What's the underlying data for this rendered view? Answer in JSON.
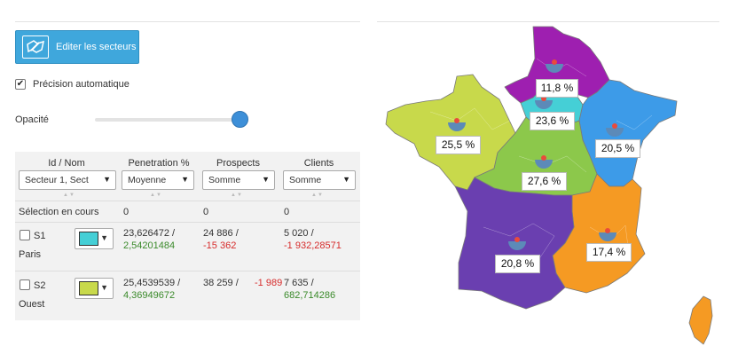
{
  "toolbar": {
    "edit_label": "Editer les secteurs"
  },
  "auto_precision": {
    "label": "Précision automatique",
    "checked": true
  },
  "opacity": {
    "label": "Opacité",
    "value": 0.95
  },
  "table": {
    "headers": {
      "id": "Id / Nom",
      "penetration": "Penetration %",
      "prospects": "Prospects",
      "clients": "Clients"
    },
    "selects": {
      "id": "Secteur 1, Sect",
      "penetration": "Moyenne",
      "prospects": "Somme",
      "clients": "Somme"
    },
    "selection": {
      "label": "Sélection en cours",
      "penetration": "0",
      "prospects": "0",
      "clients": "0"
    },
    "rows": [
      {
        "id": "S1",
        "name": "Paris",
        "color": "#45cfd6",
        "penetration_1": "23,626472 /",
        "penetration_2": "2,54201484",
        "prospects_1": "24 886 /",
        "prospects_2": "-15 362",
        "clients_1": "5 020 /",
        "clients_2": "-1 932,28571"
      },
      {
        "id": "S2",
        "name": "Ouest",
        "color": "#c8d94b",
        "penetration_1": "25,4539539 /",
        "penetration_2": "4,36949672",
        "prospects_1": "38 259 /",
        "prospects_2": "-1 989",
        "clients_1": "7 635 /",
        "clients_2": "682,714286"
      }
    ]
  },
  "map": {
    "regions": [
      {
        "id": "nord",
        "color": "#9e1fb0",
        "label": "11,8 %"
      },
      {
        "id": "paris",
        "color": "#45cfd6",
        "label": "23,6 %"
      },
      {
        "id": "ouest",
        "color": "#c8d94b",
        "label": "25,5 %"
      },
      {
        "id": "est",
        "color": "#3d9be8",
        "label": "20,5 %"
      },
      {
        "id": "centre",
        "color": "#8cc84b",
        "label": "27,6 %"
      },
      {
        "id": "sud-est",
        "color": "#f59a23",
        "label": "17,4 %"
      },
      {
        "id": "sud-ouest",
        "color": "#6a3fb0",
        "label": "20,8 %"
      }
    ]
  }
}
